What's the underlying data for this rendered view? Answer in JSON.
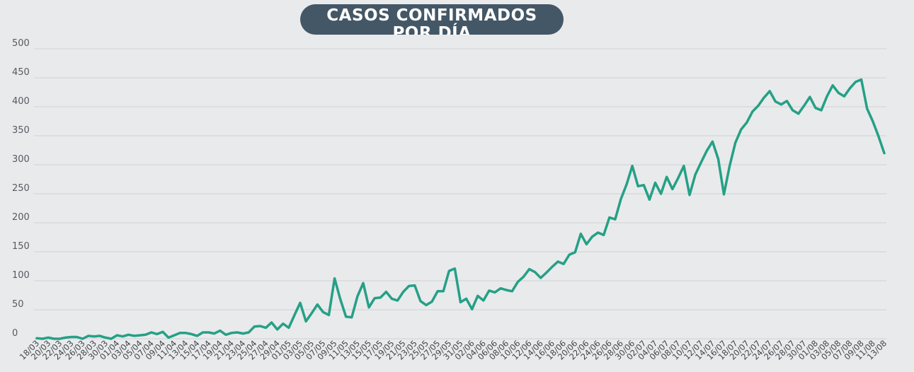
{
  "chart_data": {
    "type": "line",
    "title": "CASOS CONFIRMADOS POR DÍA",
    "ylim": [
      0,
      500
    ],
    "yticks": [
      0,
      50,
      100,
      150,
      200,
      250,
      300,
      350,
      400,
      450,
      500
    ],
    "grid": true,
    "line_color": "#25a086",
    "x": [
      "18/03",
      "19/03",
      "20/03",
      "21/03",
      "22/03",
      "23/03",
      "24/03",
      "25/03",
      "26/03",
      "27/03",
      "28/03",
      "29/03",
      "30/03",
      "31/03",
      "01/04",
      "02/04",
      "03/04",
      "04/04",
      "05/04",
      "06/04",
      "07/04",
      "08/04",
      "09/04",
      "10/04",
      "11/04",
      "12/04",
      "13/04",
      "14/04",
      "15/04",
      "16/04",
      "17/04",
      "18/04",
      "19/04",
      "20/04",
      "21/04",
      "22/04",
      "23/04",
      "24/04",
      "25/04",
      "26/04",
      "27/04",
      "28/04",
      "29/04",
      "30/04",
      "01/05",
      "02/05",
      "03/05",
      "04/05",
      "05/05",
      "06/05",
      "07/05",
      "08/05",
      "09/05",
      "10/05",
      "11/05",
      "12/05",
      "13/05",
      "14/05",
      "15/05",
      "16/05",
      "17/05",
      "18/05",
      "19/05",
      "20/05",
      "21/05",
      "22/05",
      "23/05",
      "24/05",
      "25/05",
      "26/05",
      "27/05",
      "28/05",
      "29/05",
      "30/05",
      "31/05",
      "01/06",
      "02/06",
      "03/06",
      "04/06",
      "05/06",
      "06/06",
      "07/06",
      "08/06",
      "09/06",
      "10/06",
      "11/06",
      "12/06",
      "13/06",
      "14/06",
      "15/06",
      "16/06",
      "17/06",
      "18/06",
      "19/06",
      "20/06",
      "21/06",
      "22/06",
      "23/06",
      "24/06",
      "25/06",
      "26/06",
      "27/06",
      "28/06",
      "29/06",
      "30/06",
      "01/07",
      "02/07",
      "03/07",
      "04/07",
      "05/07",
      "06/07",
      "07/07",
      "08/07",
      "09/07",
      "10/07",
      "11/07",
      "12/07",
      "13/07",
      "14/07",
      "15/07",
      "16/07",
      "17/07",
      "18/07",
      "19/07",
      "20/07",
      "21/07",
      "22/07",
      "23/07",
      "24/07",
      "25/07",
      "26/07",
      "27/07",
      "28/07",
      "29/07",
      "30/07",
      "31/07",
      "01/08",
      "02/08",
      "03/08",
      "04/08",
      "05/08",
      "06/08",
      "07/08",
      "08/08",
      "09/08",
      "10/08",
      "11/08",
      "12/08",
      "13/08"
    ],
    "xtick_labels": [
      "18/03",
      "20/03",
      "22/03",
      "24/03",
      "26/03",
      "28/03",
      "30/03",
      "01/04",
      "03/04",
      "05/04",
      "07/04",
      "09/04",
      "11/04",
      "13/04",
      "15/04",
      "17/04",
      "19/04",
      "21/04",
      "23/04",
      "25/04",
      "27/04",
      "29/04",
      "01/05",
      "03/05",
      "05/05",
      "07/05",
      "09/05",
      "11/05",
      "13/05",
      "15/05",
      "17/05",
      "19/05",
      "21/05",
      "23/05",
      "25/05",
      "27/05",
      "29/05",
      "31/05",
      "02/06",
      "04/06",
      "06/06",
      "08/06",
      "10/06",
      "12/06",
      "14/06",
      "16/06",
      "18/06",
      "20/06",
      "22/06",
      "24/06",
      "26/06",
      "28/06",
      "30/06",
      "02/07",
      "04/07",
      "06/07",
      "08/07",
      "10/07",
      "12/07",
      "14/07",
      "16/07",
      "18/07",
      "20/07",
      "22/07",
      "24/07",
      "26/07",
      "28/07",
      "30/07",
      "01/08",
      "03/08",
      "05/08",
      "07/08",
      "09/08",
      "11/08",
      "13/08"
    ],
    "values": [
      1,
      0,
      2,
      0,
      0,
      2,
      3,
      3,
      0,
      5,
      4,
      5,
      2,
      0,
      6,
      4,
      7,
      5,
      6,
      7,
      11,
      8,
      12,
      2,
      6,
      10,
      10,
      8,
      5,
      11,
      11,
      9,
      14,
      7,
      10,
      11,
      9,
      11,
      21,
      22,
      19,
      28,
      16,
      26,
      19,
      41,
      62,
      30,
      44,
      59,
      46,
      41,
      104,
      68,
      38,
      37,
      73,
      96,
      54,
      70,
      71,
      81,
      69,
      66,
      81,
      91,
      92,
      65,
      58,
      64,
      82,
      82,
      117,
      121,
      63,
      69,
      51,
      74,
      66,
      83,
      80,
      87,
      84,
      82,
      98,
      107,
      120,
      115,
      105,
      114,
      124,
      133,
      129,
      145,
      149,
      181,
      163,
      176,
      183,
      179,
      209,
      206,
      241,
      266,
      298,
      263,
      265,
      240,
      269,
      250,
      279,
      258,
      277,
      298,
      248,
      283,
      304,
      324,
      340,
      310,
      249,
      298,
      338,
      361,
      373,
      392,
      402,
      416,
      427,
      409,
      404,
      410,
      394,
      388,
      402,
      417,
      398,
      394,
      418,
      437,
      424,
      418,
      432,
      443,
      447,
      397,
      375,
      349,
      320
    ]
  }
}
